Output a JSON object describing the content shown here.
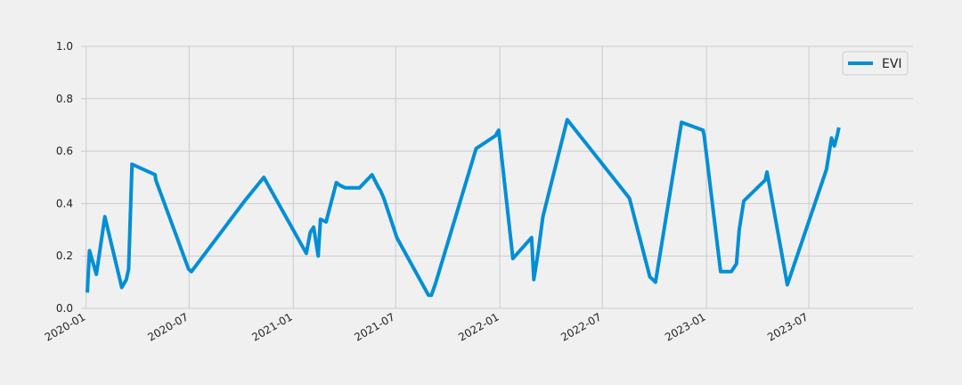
{
  "chart_data": {
    "type": "line",
    "title": "",
    "xlabel": "",
    "ylabel": "",
    "xlim": [
      "2019-12-23",
      "2024-01-01"
    ],
    "ylim": [
      0,
      1
    ],
    "grid": true,
    "legend_position": "top-right",
    "x_tick_labels": [
      "2020-01",
      "2020-07",
      "2021-01",
      "2021-07",
      "2022-01",
      "2022-07",
      "2023-01",
      "2023-07"
    ],
    "y_tick_labels": [
      "0.0",
      "0.2",
      "0.4",
      "0.6",
      "0.8",
      "1.0"
    ],
    "colors": {
      "line": "#008fd5",
      "background": "#f0f0f0",
      "grid": "#cbcbcb"
    },
    "series": [
      {
        "name": "EVI",
        "x": [
          "2020-01-03",
          "2020-01-07",
          "2020-01-19",
          "2020-02-03",
          "2020-03-04",
          "2020-03-12",
          "2020-03-16",
          "2020-03-22",
          "2020-05-02",
          "2020-05-03",
          "2020-06-30",
          "2020-07-05",
          "2020-10-07",
          "2020-11-10",
          "2021-01-24",
          "2021-01-31",
          "2021-02-06",
          "2021-02-14",
          "2021-02-18",
          "2021-02-28",
          "2021-03-18",
          "2021-03-24",
          "2021-04-03",
          "2021-04-28",
          "2021-05-20",
          "2021-06-01",
          "2021-06-04",
          "2021-06-10",
          "2021-07-03",
          "2021-08-28",
          "2021-09-02",
          "2021-09-10",
          "2021-11-20",
          "2021-12-25",
          "2021-12-27",
          "2021-12-30",
          "2022-01-24",
          "2022-02-26",
          "2022-03-02",
          "2022-03-10",
          "2022-03-18",
          "2022-04-30",
          "2022-08-18",
          "2022-09-23",
          "2022-10-03",
          "2022-11-18",
          "2022-12-26",
          "2022-12-28",
          "2023-01-26",
          "2023-02-09",
          "2023-02-14",
          "2023-02-23",
          "2023-02-28",
          "2023-03-08",
          "2023-04-15",
          "2023-04-18",
          "2023-05-24",
          "2023-08-01",
          "2023-08-10",
          "2023-08-15",
          "2023-08-20",
          "2023-08-23"
        ],
        "values": [
          0.06,
          0.22,
          0.13,
          0.35,
          0.08,
          0.11,
          0.15,
          0.55,
          0.51,
          0.49,
          0.15,
          0.14,
          0.41,
          0.5,
          0.21,
          0.29,
          0.31,
          0.2,
          0.34,
          0.33,
          0.48,
          0.47,
          0.46,
          0.46,
          0.51,
          0.46,
          0.45,
          0.42,
          0.27,
          0.05,
          0.05,
          0.1,
          0.61,
          0.66,
          0.67,
          0.68,
          0.19,
          0.27,
          0.11,
          0.22,
          0.35,
          0.72,
          0.42,
          0.12,
          0.1,
          0.71,
          0.68,
          0.66,
          0.14,
          0.14,
          0.14,
          0.17,
          0.3,
          0.41,
          0.49,
          0.52,
          0.09,
          0.53,
          0.65,
          0.62,
          0.66,
          0.69
        ]
      }
    ]
  }
}
